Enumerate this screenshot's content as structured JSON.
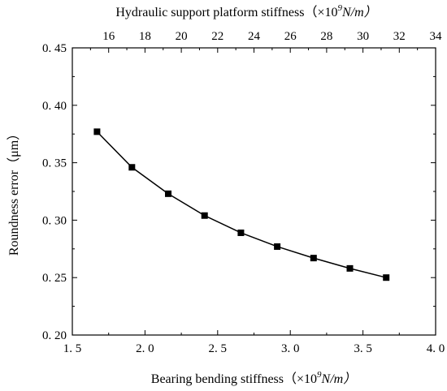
{
  "chart_data": {
    "type": "line",
    "title": "",
    "xlabel": "Bearing bending stiffness（×10",
    "xlabel_sup": "9",
    "xlabel_unit": "N/m）",
    "x2label": "Hydraulic support platform stiffness（×10",
    "x2label_sup": "9",
    "x2label_unit": "N/m）",
    "ylabel": "Roundness error（μm）",
    "xlim": [
      1.5,
      4.0
    ],
    "x2lim": [
      14,
      34
    ],
    "ylim": [
      0.2,
      0.45
    ],
    "xticks": [
      1.5,
      2.0,
      2.5,
      3.0,
      3.5,
      4.0
    ],
    "xtick_labels": [
      "1. 5",
      "2. 0",
      "2. 5",
      "3. 0",
      "3. 5",
      "4. 0"
    ],
    "x2ticks": [
      16,
      18,
      20,
      22,
      24,
      26,
      28,
      30,
      32,
      34
    ],
    "x2tick_labels": [
      "16",
      "18",
      "20",
      "22",
      "24",
      "26",
      "28",
      "30",
      "32",
      "34"
    ],
    "yticks": [
      0.2,
      0.25,
      0.3,
      0.35,
      0.4,
      0.45
    ],
    "ytick_labels": [
      "0. 20",
      "0. 25",
      "0. 30",
      "0. 35",
      "0. 40",
      "0. 45"
    ],
    "grid": false,
    "marker": "square",
    "series": [
      {
        "x": [
          1.67,
          1.91,
          2.16,
          2.41,
          2.66,
          2.91,
          3.16,
          3.41,
          3.66
        ],
        "y": [
          0.377,
          0.346,
          0.323,
          0.304,
          0.289,
          0.277,
          0.267,
          0.258,
          0.25
        ]
      }
    ]
  }
}
